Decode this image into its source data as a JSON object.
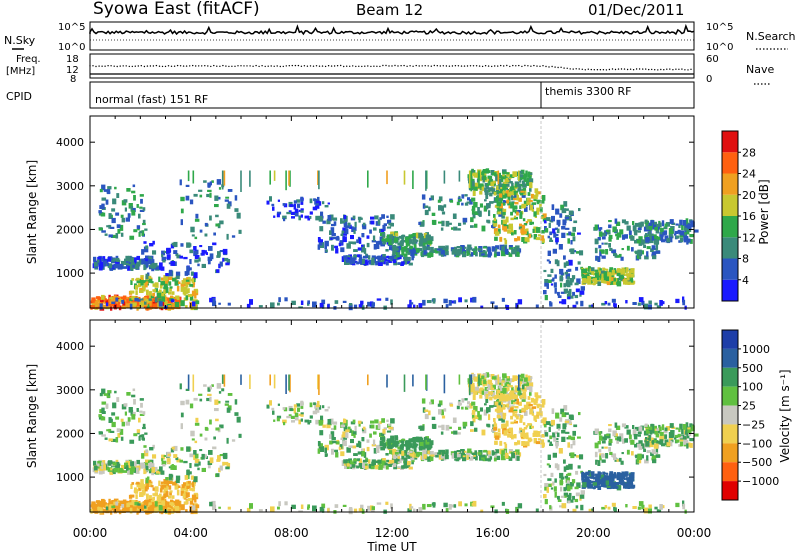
{
  "header": {
    "station": "Syowa East (fitACF)",
    "beam": "Beam 12",
    "date": "01/Dec/2011"
  },
  "panel_labels": {
    "nsky": "N.Sky",
    "nsearch": "N.Search",
    "freq_top": "Freq.",
    "freq_unit": "[MHz]",
    "cpid": "CPID",
    "nave": "Nave"
  },
  "top_panel": {
    "left_ticks": [
      "10^5",
      "10^0"
    ],
    "right_ticks": [
      "10^5",
      "10^0"
    ],
    "freq_ticks": [
      "18",
      "12",
      "8"
    ],
    "nave_ticks": [
      "60",
      "0"
    ]
  },
  "cpid_segments": [
    {
      "label": "normal (fast) 151 RF",
      "start_h": 0
    },
    {
      "label": "themis 3300 RF",
      "start_h": 18.0
    }
  ],
  "chart_data": [
    {
      "type": "heatmap",
      "name": "power",
      "xlabel": "",
      "ylabel": "Slant Range [km]",
      "xlim_hours": [
        0,
        24
      ],
      "ylim_km": [
        200,
        4600
      ],
      "y_ticks": [
        1000,
        2000,
        3000,
        4000
      ],
      "colorbar": {
        "label": "Power [dB]",
        "ticks": [
          "4",
          "8",
          "12",
          "16",
          "20",
          "24",
          "28"
        ],
        "colors": [
          "#1a1aff",
          "#2a55c0",
          "#3a8a7a",
          "#2fa84a",
          "#c8c830",
          "#f0a020",
          "#ff6010",
          "#e01010"
        ]
      }
    },
    {
      "type": "heatmap",
      "name": "velocity",
      "xlabel": "Time UT",
      "ylabel": "Slant Range [km]",
      "xlim_hours": [
        0,
        24
      ],
      "ylim_km": [
        200,
        4600
      ],
      "y_ticks": [
        1000,
        2000,
        3000,
        4000
      ],
      "x_ticks": [
        "00:00",
        "04:00",
        "08:00",
        "12:00",
        "16:00",
        "20:00",
        "00:00"
      ],
      "colorbar": {
        "label": "Velocity [m s⁻¹]",
        "ticks": [
          "1000",
          "500",
          "100",
          "25",
          "−25",
          "−100",
          "−500",
          "−1000"
        ],
        "colors": [
          "#1e3ea8",
          "#2a60a0",
          "#3a9a5a",
          "#60c040",
          "#c8c8c0",
          "#f0d050",
          "#f0a020",
          "#ff6010",
          "#e00000"
        ]
      }
    }
  ],
  "scatter_regions": [
    {
      "t0": 0.0,
      "t1": 3.5,
      "r0": 200,
      "r1": 450,
      "n": 260,
      "p": 24,
      "v": -400
    },
    {
      "t0": 1.5,
      "t1": 4.2,
      "r0": 200,
      "r1": 900,
      "n": 160,
      "p": 18,
      "v": -300
    },
    {
      "t0": 0.1,
      "t1": 2.6,
      "r0": 1100,
      "r1": 1350,
      "n": 110,
      "p": 7,
      "v": 20
    },
    {
      "t0": 0.3,
      "t1": 2.2,
      "r0": 1800,
      "r1": 3000,
      "n": 70,
      "p": 10,
      "v": 50
    },
    {
      "t0": 2.0,
      "t1": 5.5,
      "r0": 900,
      "r1": 1700,
      "n": 90,
      "p": 6,
      "v": 10
    },
    {
      "t0": 3.5,
      "t1": 6.0,
      "r0": 1800,
      "r1": 3100,
      "n": 50,
      "p": 9,
      "v": 40
    },
    {
      "t0": 7.0,
      "t1": 9.5,
      "r0": 2200,
      "r1": 2700,
      "n": 55,
      "p": 5,
      "v": 10
    },
    {
      "t0": 9.0,
      "t1": 12.0,
      "r0": 1500,
      "r1": 2300,
      "n": 120,
      "p": 7,
      "v": 20
    },
    {
      "t0": 10.0,
      "t1": 12.8,
      "r0": 1200,
      "r1": 1400,
      "n": 100,
      "p": 6,
      "v": 15
    },
    {
      "t0": 11.5,
      "t1": 13.5,
      "r0": 1650,
      "r1": 1900,
      "n": 110,
      "p": 12,
      "v": 150
    },
    {
      "t0": 12.0,
      "t1": 17.0,
      "r0": 1400,
      "r1": 1600,
      "n": 170,
      "p": 10,
      "v": 10
    },
    {
      "t0": 13.0,
      "t1": 17.5,
      "r0": 2000,
      "r1": 2800,
      "n": 110,
      "p": 11,
      "v": 30
    },
    {
      "t0": 15.0,
      "t1": 17.5,
      "r0": 2800,
      "r1": 3350,
      "n": 180,
      "p": 14,
      "v": -60
    },
    {
      "t0": 16.0,
      "t1": 18.0,
      "r0": 1700,
      "r1": 2900,
      "n": 150,
      "p": 17,
      "v": -200
    },
    {
      "t0": 18.0,
      "t1": 19.5,
      "r0": 400,
      "r1": 2600,
      "n": 120,
      "p": 8,
      "v": 40
    },
    {
      "t0": 19.5,
      "t1": 21.5,
      "r0": 750,
      "r1": 1100,
      "n": 150,
      "p": 16,
      "v": 400
    },
    {
      "t0": 20.0,
      "t1": 22.5,
      "r0": 1300,
      "r1": 2200,
      "n": 110,
      "p": 10,
      "v": 60
    },
    {
      "t0": 22.0,
      "t1": 24.0,
      "r0": 1700,
      "r1": 2200,
      "n": 110,
      "p": 9,
      "v": 25
    },
    {
      "t0": 0.0,
      "t1": 24.0,
      "r0": 200,
      "r1": 400,
      "n": 120,
      "p": 6,
      "v": 10
    }
  ]
}
